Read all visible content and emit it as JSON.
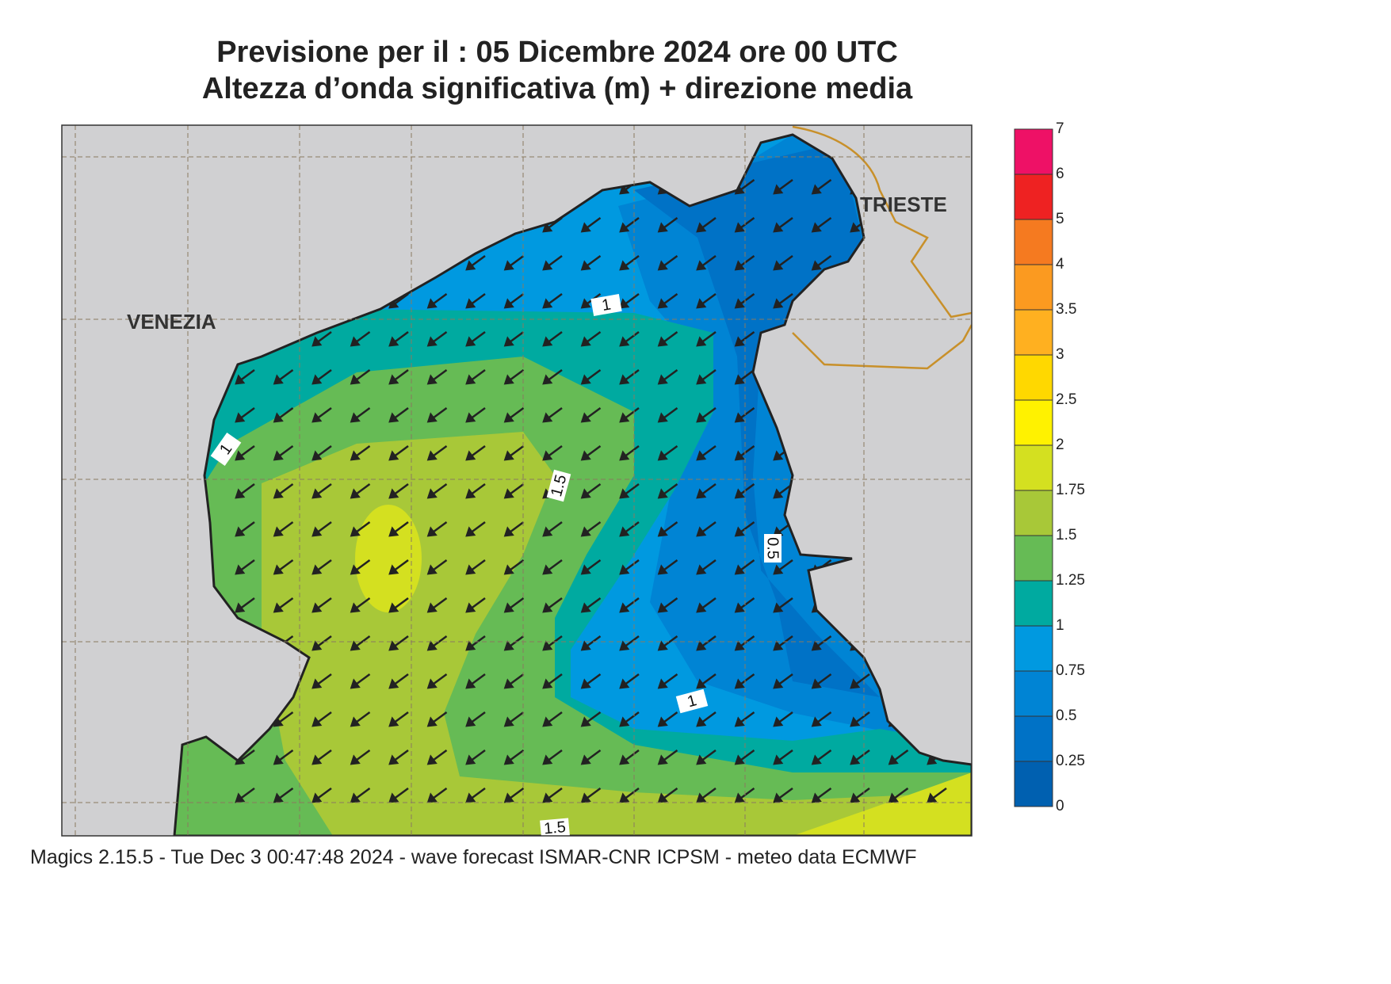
{
  "header": {
    "title_line1": "Previsione per il  :  05 Dicembre  2024   ore 00 UTC",
    "title_line2": "Altezza d’onda significativa (m) + direzione media"
  },
  "map": {
    "places": [
      "VENEZIA",
      "TRIESTE"
    ],
    "contour_labels": [
      1,
      1,
      1.5,
      0.5,
      1,
      1.5
    ]
  },
  "colorbar": {
    "levels": [
      0,
      0.25,
      0.5,
      0.75,
      1,
      1.25,
      1.5,
      1.75,
      2,
      2.5,
      3,
      3.5,
      4,
      5,
      6,
      7
    ],
    "colors": [
      "#0060b0",
      "#0072c6",
      "#0084d4",
      "#0099e0",
      "#00aaa0",
      "#66bb55",
      "#a8c838",
      "#d4e020",
      "#fff200",
      "#ffd800",
      "#ffb020",
      "#fb9a20",
      "#f57a20",
      "#ee2222",
      "#ee1166"
    ]
  },
  "footer": "Magics 2.15.5 - Tue Dec  3 00:47:48 2024 - wave forecast  ISMAR-CNR  ICPSM - meteo data   ECMWF"
}
